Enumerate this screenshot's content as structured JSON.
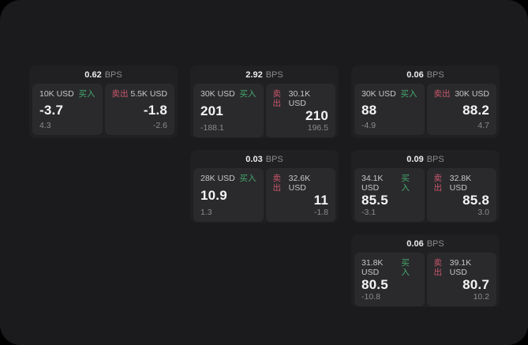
{
  "labels": {
    "bps_suffix": "BPS",
    "buy": "买入",
    "sell": "卖出"
  },
  "colors": {
    "background": "#000000",
    "panel": "#1b1b1d",
    "card": "#202022",
    "tile": "#2a2a2c",
    "text_primary": "#f4f4f5",
    "text_size_label": "#c7c7ca",
    "text_muted": "#8b8b90",
    "buy_green": "#45a96e",
    "sell_red": "#c9566b"
  },
  "cards": [
    {
      "bps": "0.62",
      "buy": {
        "size": "10K USD",
        "price": "-3.7",
        "delta": "4.3"
      },
      "sell": {
        "size": "5.5K USD",
        "price": "-1.8",
        "delta": "-2.6"
      }
    },
    {
      "bps": "2.92",
      "buy": {
        "size": "30K USD",
        "price": "201",
        "delta": "-188.1"
      },
      "sell": {
        "size": "30.1K USD",
        "price": "210",
        "delta": "196.5"
      }
    },
    {
      "bps": "0.06",
      "buy": {
        "size": "30K USD",
        "price": "88",
        "delta": "-4.9"
      },
      "sell": {
        "size": "30K USD",
        "price": "88.2",
        "delta": "4.7"
      }
    },
    {
      "bps": "0.03",
      "buy": {
        "size": "28K USD",
        "price": "10.9",
        "delta": "1.3"
      },
      "sell": {
        "size": "32.6K USD",
        "price": "11",
        "delta": "-1.8"
      }
    },
    {
      "bps": "0.09",
      "buy": {
        "size": "34.1K USD",
        "price": "85.5",
        "delta": "-3.1"
      },
      "sell": {
        "size": "32.8K USD",
        "price": "85.8",
        "delta": "3.0"
      }
    },
    {
      "bps": "0.06",
      "buy": {
        "size": "31.8K USD",
        "price": "80.5",
        "delta": "-10.8"
      },
      "sell": {
        "size": "39.1K USD",
        "price": "80.7",
        "delta": "10.2"
      }
    }
  ]
}
